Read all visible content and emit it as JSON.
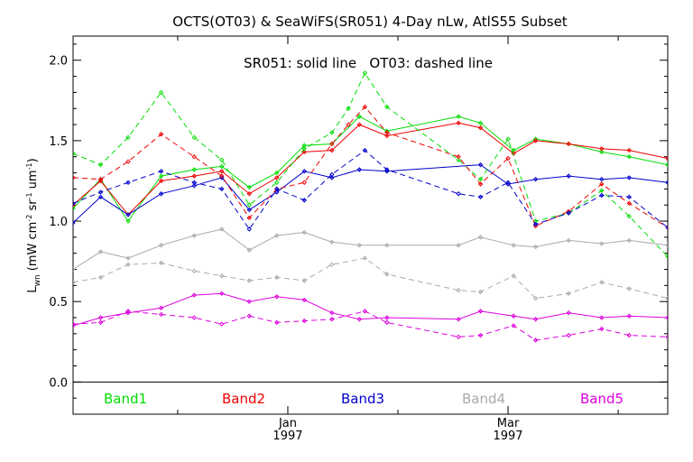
{
  "chart_data": {
    "type": "line",
    "title": "OCTS(OT03) & SeaWiFS(SR051) 4-Day nLw, AtlS55 Subset",
    "annotation": "SR051: solid line   OT03: dashed line",
    "ylabel_main": "L",
    "ylabel_sub": "wn",
    "ylabel_rest": " (mW cm",
    "ylabel_sup1": "-2",
    "ylabel_mid1": " sr",
    "ylabel_sup2": "-1",
    "ylabel_mid2": " um",
    "ylabel_sup3": "-1",
    "ylabel_end": ")",
    "ylim": [
      -0.2,
      2.15
    ],
    "xlim": [
      0,
      108
    ],
    "y_ticks": [
      {
        "value": 0.0,
        "label": "0.0"
      },
      {
        "value": 0.5,
        "label": "0.5"
      },
      {
        "value": 1.0,
        "label": "1.0"
      },
      {
        "value": 1.5,
        "label": "1.5"
      },
      {
        "value": 2.0,
        "label": "2.0"
      }
    ],
    "x_major_ticks": [
      {
        "value": 39,
        "label1": "Jan",
        "label2": "1997"
      },
      {
        "value": 79,
        "label1": "Mar",
        "label2": "1997"
      }
    ],
    "x_minor_ticks": [
      19,
      59,
      99
    ],
    "zero_line": 0.0,
    "legend": [
      {
        "label": "Band1",
        "color": "#00dd00"
      },
      {
        "label": "Band2",
        "color": "#ee0000"
      },
      {
        "label": "Band3",
        "color": "#0000cc"
      },
      {
        "label": "Band4",
        "color": "#aaaaaa"
      },
      {
        "label": "Band5",
        "color": "#dd00dd"
      }
    ],
    "series": [
      {
        "band": "Band1",
        "style": "solid",
        "color": "#00dd00",
        "points": [
          [
            0,
            1.08
          ],
          [
            5,
            1.26
          ],
          [
            10,
            1.0
          ],
          [
            16,
            1.28
          ],
          [
            22,
            1.32
          ],
          [
            27,
            1.34
          ],
          [
            32,
            1.21
          ],
          [
            37,
            1.3
          ],
          [
            42,
            1.47
          ],
          [
            47,
            1.48
          ],
          [
            52,
            1.65
          ],
          [
            57,
            1.56
          ],
          [
            70,
            1.65
          ],
          [
            74,
            1.61
          ],
          [
            80,
            1.44
          ],
          [
            84,
            1.51
          ],
          [
            90,
            1.48
          ],
          [
            96,
            1.43
          ],
          [
            101,
            1.4
          ],
          [
            108,
            1.35
          ]
        ]
      },
      {
        "band": "Band2",
        "style": "solid",
        "color": "#ee0000",
        "points": [
          [
            0,
            1.1
          ],
          [
            5,
            1.25
          ],
          [
            10,
            1.04
          ],
          [
            16,
            1.25
          ],
          [
            22,
            1.28
          ],
          [
            27,
            1.31
          ],
          [
            32,
            1.17
          ],
          [
            37,
            1.27
          ],
          [
            42,
            1.43
          ],
          [
            47,
            1.44
          ],
          [
            52,
            1.6
          ],
          [
            57,
            1.53
          ],
          [
            70,
            1.61
          ],
          [
            74,
            1.58
          ],
          [
            80,
            1.42
          ],
          [
            84,
            1.5
          ],
          [
            90,
            1.48
          ],
          [
            96,
            1.45
          ],
          [
            101,
            1.44
          ],
          [
            108,
            1.39
          ]
        ]
      },
      {
        "band": "Band3",
        "style": "solid",
        "color": "#0000cc",
        "points": [
          [
            0,
            0.99
          ],
          [
            5,
            1.15
          ],
          [
            10,
            1.04
          ],
          [
            16,
            1.17
          ],
          [
            22,
            1.22
          ],
          [
            27,
            1.27
          ],
          [
            32,
            1.07
          ],
          [
            37,
            1.18
          ],
          [
            42,
            1.31
          ],
          [
            47,
            1.27
          ],
          [
            52,
            1.32
          ],
          [
            57,
            1.31
          ],
          [
            74,
            1.35
          ],
          [
            79,
            1.23
          ],
          [
            84,
            1.26
          ],
          [
            90,
            1.28
          ],
          [
            96,
            1.26
          ],
          [
            101,
            1.27
          ],
          [
            108,
            1.24
          ]
        ]
      },
      {
        "band": "Band4",
        "style": "solid",
        "color": "#aaaaaa",
        "points": [
          [
            0,
            0.7
          ],
          [
            5,
            0.81
          ],
          [
            10,
            0.77
          ],
          [
            16,
            0.85
          ],
          [
            22,
            0.91
          ],
          [
            27,
            0.95
          ],
          [
            32,
            0.82
          ],
          [
            37,
            0.91
          ],
          [
            42,
            0.93
          ],
          [
            47,
            0.87
          ],
          [
            52,
            0.85
          ],
          [
            57,
            0.85
          ],
          [
            70,
            0.85
          ],
          [
            74,
            0.9
          ],
          [
            80,
            0.85
          ],
          [
            84,
            0.84
          ],
          [
            90,
            0.88
          ],
          [
            96,
            0.86
          ],
          [
            101,
            0.88
          ],
          [
            108,
            0.85
          ]
        ]
      },
      {
        "band": "Band5",
        "style": "solid",
        "color": "#dd00dd",
        "points": [
          [
            0,
            0.35
          ],
          [
            5,
            0.4
          ],
          [
            10,
            0.43
          ],
          [
            16,
            0.46
          ],
          [
            22,
            0.54
          ],
          [
            27,
            0.55
          ],
          [
            32,
            0.5
          ],
          [
            37,
            0.53
          ],
          [
            42,
            0.51
          ],
          [
            47,
            0.43
          ],
          [
            52,
            0.39
          ],
          [
            57,
            0.4
          ],
          [
            70,
            0.39
          ],
          [
            74,
            0.44
          ],
          [
            80,
            0.41
          ],
          [
            84,
            0.39
          ],
          [
            90,
            0.43
          ],
          [
            96,
            0.4
          ],
          [
            101,
            0.41
          ],
          [
            108,
            0.4
          ]
        ]
      },
      {
        "band": "Band1",
        "style": "dashed",
        "color": "#00dd00",
        "points": [
          [
            0,
            1.42
          ],
          [
            5,
            1.35
          ],
          [
            10,
            1.52
          ],
          [
            16,
            1.8
          ],
          [
            22,
            1.52
          ],
          [
            27,
            1.38
          ],
          [
            32,
            1.1
          ],
          [
            37,
            1.24
          ],
          [
            42,
            1.45
          ],
          [
            47,
            1.55
          ],
          [
            50,
            1.7
          ],
          [
            53,
            1.92
          ],
          [
            57,
            1.71
          ],
          [
            70,
            1.38
          ],
          [
            74,
            1.26
          ],
          [
            79,
            1.51
          ],
          [
            84,
            1.0
          ],
          [
            90,
            1.05
          ],
          [
            96,
            1.19
          ],
          [
            101,
            1.03
          ],
          [
            108,
            0.78
          ]
        ]
      },
      {
        "band": "Band2",
        "style": "dashed",
        "color": "#ee0000",
        "points": [
          [
            0,
            1.27
          ],
          [
            5,
            1.26
          ],
          [
            10,
            1.37
          ],
          [
            16,
            1.54
          ],
          [
            22,
            1.4
          ],
          [
            27,
            1.28
          ],
          [
            32,
            1.02
          ],
          [
            37,
            1.2
          ],
          [
            42,
            1.24
          ],
          [
            47,
            1.48
          ],
          [
            50,
            1.6
          ],
          [
            53,
            1.71
          ],
          [
            57,
            1.55
          ],
          [
            70,
            1.4
          ],
          [
            74,
            1.23
          ],
          [
            79,
            1.39
          ],
          [
            84,
            0.97
          ],
          [
            90,
            1.06
          ],
          [
            96,
            1.23
          ],
          [
            101,
            1.11
          ],
          [
            108,
            0.96
          ]
        ]
      },
      {
        "band": "Band3",
        "style": "dashed",
        "color": "#0000cc",
        "points": [
          [
            0,
            1.11
          ],
          [
            5,
            1.18
          ],
          [
            10,
            1.24
          ],
          [
            16,
            1.31
          ],
          [
            22,
            1.24
          ],
          [
            27,
            1.2
          ],
          [
            32,
            0.95
          ],
          [
            37,
            1.2
          ],
          [
            42,
            1.13
          ],
          [
            47,
            1.29
          ],
          [
            53,
            1.44
          ],
          [
            57,
            1.32
          ],
          [
            70,
            1.17
          ],
          [
            74,
            1.15
          ],
          [
            79,
            1.24
          ],
          [
            84,
            0.98
          ],
          [
            90,
            1.05
          ],
          [
            96,
            1.16
          ],
          [
            101,
            1.15
          ],
          [
            108,
            0.96
          ]
        ]
      },
      {
        "band": "Band4",
        "style": "dashed",
        "color": "#aaaaaa",
        "points": [
          [
            0,
            0.62
          ],
          [
            5,
            0.65
          ],
          [
            10,
            0.73
          ],
          [
            16,
            0.74
          ],
          [
            22,
            0.69
          ],
          [
            27,
            0.66
          ],
          [
            32,
            0.63
          ],
          [
            37,
            0.65
          ],
          [
            42,
            0.63
          ],
          [
            47,
            0.73
          ],
          [
            53,
            0.77
          ],
          [
            57,
            0.67
          ],
          [
            70,
            0.57
          ],
          [
            74,
            0.56
          ],
          [
            80,
            0.66
          ],
          [
            84,
            0.52
          ],
          [
            90,
            0.55
          ],
          [
            96,
            0.62
          ],
          [
            101,
            0.58
          ],
          [
            108,
            0.52
          ]
        ]
      },
      {
        "band": "Band5",
        "style": "dashed",
        "color": "#dd00dd",
        "points": [
          [
            0,
            0.36
          ],
          [
            5,
            0.37
          ],
          [
            10,
            0.44
          ],
          [
            16,
            0.42
          ],
          [
            22,
            0.4
          ],
          [
            27,
            0.36
          ],
          [
            32,
            0.41
          ],
          [
            37,
            0.37
          ],
          [
            42,
            0.38
          ],
          [
            47,
            0.39
          ],
          [
            53,
            0.44
          ],
          [
            57,
            0.37
          ],
          [
            70,
            0.28
          ],
          [
            74,
            0.29
          ],
          [
            80,
            0.35
          ],
          [
            84,
            0.26
          ],
          [
            90,
            0.29
          ],
          [
            96,
            0.33
          ],
          [
            101,
            0.29
          ],
          [
            108,
            0.28
          ]
        ]
      }
    ]
  }
}
